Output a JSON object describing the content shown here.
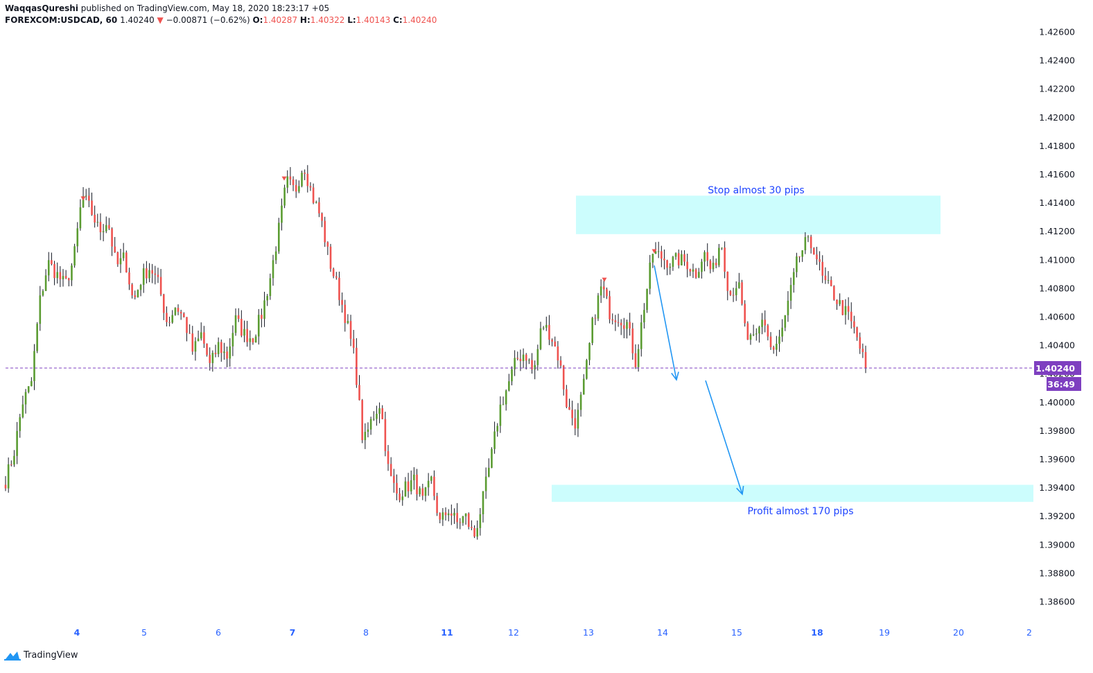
{
  "header": {
    "author": "WaqqasQureshi",
    "published_text": "published on TradingView.com, May 18, 2020 18:23:17 +05",
    "symbol": "FOREXCOM:USDCAD, 60",
    "last": "1.40240",
    "change": "−0.00871 (−0.62%)",
    "o_label": "O:",
    "o_value": "1.40287",
    "h_label": "H:",
    "h_value": "1.40322",
    "l_label": "L:",
    "l_value": "1.40143",
    "c_label": "C:",
    "c_value": "1.40240"
  },
  "footer": {
    "brand": "TradingView"
  },
  "colors": {
    "up": "#5b9c32",
    "down": "#ef5350",
    "zone": "#ccfdfd",
    "arrow": "#2196f3",
    "price_tag": "#7e3fc0"
  },
  "chart_data": {
    "type": "candlestick",
    "ylim": [
      1.3852,
      1.4265
    ],
    "y_ticks": [
      "1.42600",
      "1.42400",
      "1.42200",
      "1.42000",
      "1.41800",
      "1.41600",
      "1.41400",
      "1.41200",
      "1.41000",
      "1.40800",
      "1.40600",
      "1.40400",
      "1.40200",
      "1.40000",
      "1.39800",
      "1.39600",
      "1.39400",
      "1.39200",
      "1.39000",
      "1.38800",
      "1.38600"
    ],
    "x_ticks": [
      "4",
      "5",
      "6",
      "7",
      "8",
      "11",
      "12",
      "13",
      "14",
      "15",
      "18",
      "19",
      "20",
      "2"
    ],
    "bold_x_ticks": [
      "4",
      "7",
      "11",
      "18"
    ],
    "current_price_label": "1.40240",
    "countdown_label": "36:49",
    "price_path": [
      1.3945,
      1.3965,
      1.4,
      1.4012,
      1.407,
      1.4098,
      1.409,
      1.4082,
      1.41,
      1.4145,
      1.4135,
      1.412,
      1.4128,
      1.4095,
      1.4102,
      1.407,
      1.4088,
      1.4095,
      1.4082,
      1.4055,
      1.4068,
      1.4058,
      1.4035,
      1.4048,
      1.4025,
      1.404,
      1.4032,
      1.4058,
      1.4048,
      1.4045,
      1.406,
      1.4085,
      1.4118,
      1.4155,
      1.4148,
      1.4168,
      1.4145,
      1.413,
      1.41,
      1.408,
      1.4058,
      1.403,
      1.397,
      1.3988,
      1.4,
      1.395,
      1.3935,
      1.394,
      1.3945,
      1.393,
      1.3945,
      1.3915,
      1.3925,
      1.3915,
      1.392,
      1.3905,
      1.393,
      1.396,
      1.3995,
      1.4012,
      1.403,
      1.4035,
      1.402,
      1.4055,
      1.4048,
      1.403,
      1.3995,
      1.3985,
      1.4015,
      1.4058,
      1.4082,
      1.4062,
      1.406,
      1.4055,
      1.4028,
      1.4068,
      1.4105,
      1.4102,
      1.4098,
      1.41,
      1.4098,
      1.409,
      1.4105,
      1.409,
      1.4115,
      1.4075,
      1.4085,
      1.4045,
      1.4042,
      1.406,
      1.4035,
      1.4045,
      1.4072,
      1.41,
      1.4112,
      1.4108,
      1.4085,
      1.4078,
      1.4068,
      1.406,
      1.4045,
      1.4024
    ],
    "annotations": [
      {
        "text": "Stop almost 30 pips",
        "zone_top": 1.4145,
        "zone_bottom": 1.4118
      },
      {
        "text": "Profit almost 170 pips",
        "zone_top": 1.3942,
        "zone_bottom": 1.393
      }
    ]
  }
}
